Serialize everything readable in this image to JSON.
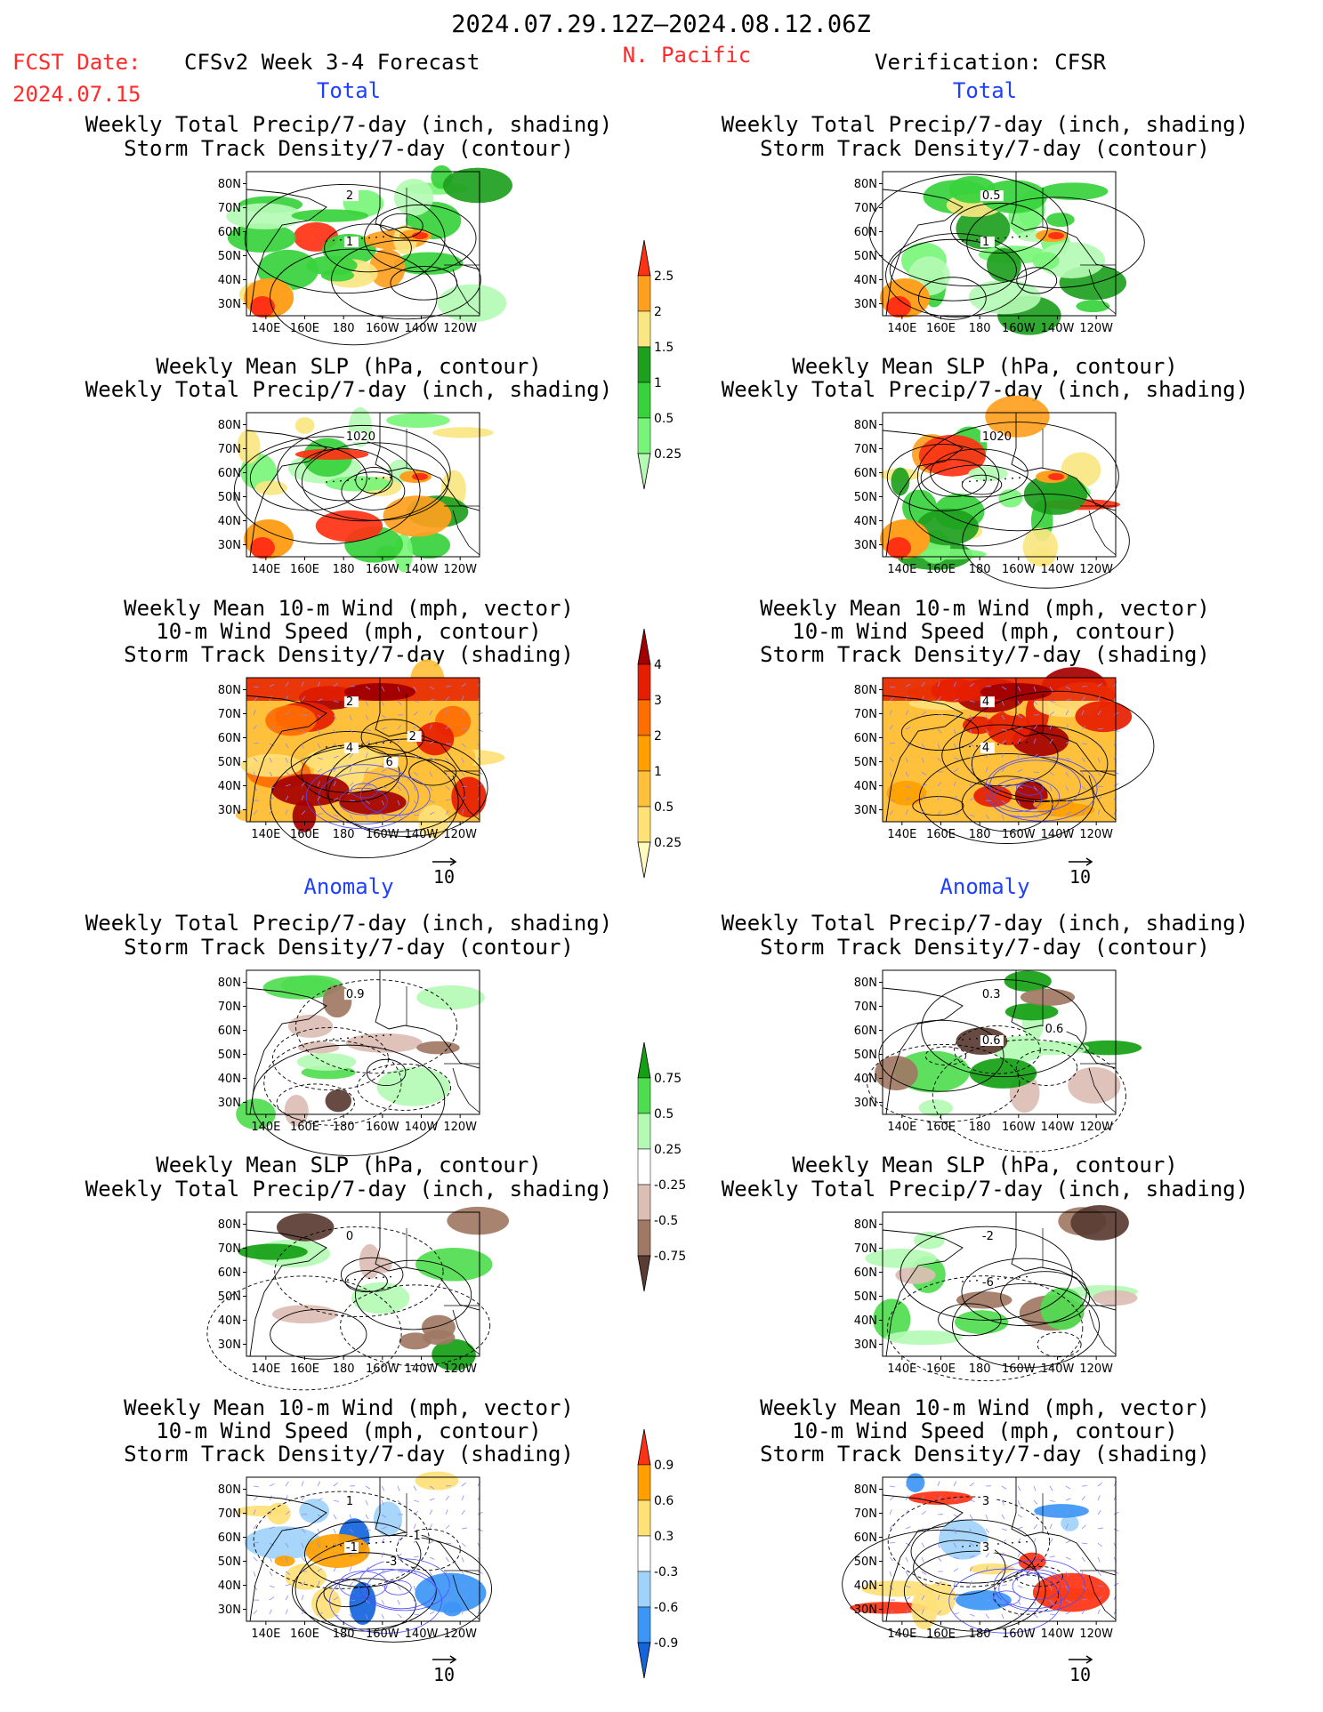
{
  "header": {
    "period": "2024.07.29.12Z–2024.08.12.06Z",
    "fcst_label": "FCST Date:",
    "fcst_date": "2024.07.15",
    "model": "CFSv2 Week 3-4 Forecast",
    "region": "N. Pacific",
    "verification": "Verification: CFSR"
  },
  "section_labels": {
    "total": "Total",
    "anomaly": "Anomaly"
  },
  "titles": {
    "precip": "Weekly Total Precip/7-day (inch, shading)",
    "storm_contour": "Storm Track Density/7-day (contour)",
    "slp": "Weekly Mean SLP (hPa, contour)",
    "wind_vec": "Weekly Mean 10-m Wind (mph, vector)",
    "wind_speed": "10-m Wind Speed (mph, contour)",
    "storm_shading": "Storm Track Density/7-day (shading)"
  },
  "axes": {
    "lat_labels": [
      "80N",
      "70N",
      "60N",
      "50N",
      "40N",
      "30N"
    ],
    "lon_labels": [
      "140E",
      "160E",
      "180",
      "160W",
      "140W",
      "120W"
    ]
  },
  "vector_scale": "10",
  "colors": {
    "precip": [
      "#b4fab4",
      "#78f578",
      "#37d23c",
      "#1ea01e",
      "#fae682",
      "#ffa01e",
      "#ff3214"
    ],
    "storm": [
      "#fffabe",
      "#ffe178",
      "#ffc03c",
      "#ffa000",
      "#ff6e00",
      "#e61e00",
      "#a50000"
    ],
    "anom_precip": [
      "#5a3c32",
      "#a07864",
      "#dcbeb4",
      "#ffffff",
      "#b4fab4",
      "#50dc50",
      "#14a014"
    ],
    "anom_storm": [
      "#1464dc",
      "#3c96f5",
      "#a0d2fa",
      "#ffffff",
      "#ffe178",
      "#ffa000",
      "#ff3214"
    ]
  },
  "colorbars": {
    "precip": [
      "0.25",
      "0.5",
      "1",
      "1.5",
      "2",
      "2.5"
    ],
    "storm": [
      "0.25",
      "0.5",
      "1",
      "2",
      "3",
      "4"
    ],
    "anom_precip": [
      "-0.75",
      "-0.5",
      "-0.25",
      "0.25",
      "0.5",
      "0.75"
    ],
    "anom_storm": [
      "-0.9",
      "-0.6",
      "-0.3",
      "0.3",
      "0.6",
      "0.9"
    ]
  },
  "contour_labels": {
    "f_total_precip": [
      "2",
      "1"
    ],
    "v_total_precip": [
      "0.5",
      "1"
    ],
    "f_total_slp": [
      "1020"
    ],
    "v_total_slp": [
      "1020"
    ],
    "f_total_wind": [
      "2",
      "4",
      "2",
      "6"
    ],
    "v_total_wind": [
      "4",
      "4"
    ],
    "f_anom_precip": [
      "0.9"
    ],
    "v_anom_precip": [
      "0.3",
      "0.6",
      "0.6"
    ],
    "f_anom_slp": [
      "0"
    ],
    "v_anom_slp": [
      "-2",
      "-6"
    ],
    "f_anom_wind": [
      "1",
      "-1",
      "-1",
      "-3"
    ],
    "v_anom_wind": [
      "3",
      "3"
    ]
  }
}
